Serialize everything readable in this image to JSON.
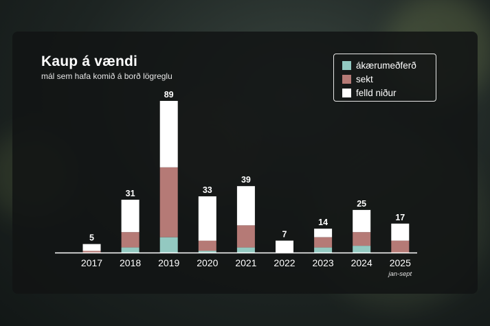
{
  "title": "Kaup á vændi",
  "subtitle": "mál sem hafa komið á borð lögreglu",
  "legend": [
    {
      "label": "ákærumeðferð",
      "color": "#93c9c1"
    },
    {
      "label": "sekt",
      "color": "#b57a76"
    },
    {
      "label": "felld niður",
      "color": "#ffffff"
    }
  ],
  "chart_data": {
    "type": "bar",
    "stacked": true,
    "categories": [
      "2017",
      "2018",
      "2019",
      "2020",
      "2021",
      "2022",
      "2023",
      "2024",
      "2025"
    ],
    "category_notes": [
      "",
      "",
      "",
      "",
      "",
      "",
      "",
      "",
      "jan-sept"
    ],
    "totals": [
      5,
      31,
      89,
      33,
      39,
      7,
      14,
      25,
      17
    ],
    "series": [
      {
        "name": "ákærumeðferð",
        "color": "#93c9c1",
        "values": [
          0,
          3,
          9,
          1,
          3,
          0,
          3,
          4,
          0
        ]
      },
      {
        "name": "sekt",
        "color": "#b57a76",
        "values": [
          1,
          9,
          41,
          6,
          13,
          0,
          6,
          8,
          7
        ]
      },
      {
        "name": "felld niður",
        "color": "#ffffff",
        "values": [
          4,
          19,
          39,
          26,
          23,
          7,
          5,
          13,
          10
        ]
      }
    ],
    "ylim": [
      0,
      89
    ],
    "legend_position": "top-right",
    "grid": false
  }
}
